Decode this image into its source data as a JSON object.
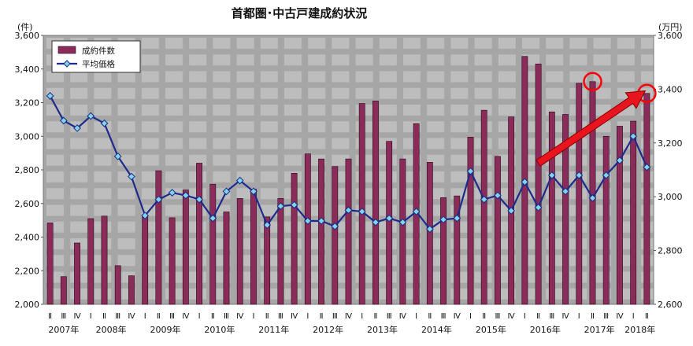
{
  "chart_data": {
    "type": "bar+line",
    "title": "首都圏･中古戸建成約状況",
    "left_axis": {
      "unit": "(件)",
      "range": [
        2000,
        3600
      ],
      "ticks": [
        "2,000",
        "2,200",
        "2,400",
        "2,600",
        "2,800",
        "3,000",
        "3,200",
        "3,400",
        "3,600"
      ]
    },
    "right_axis": {
      "unit": "(万円)",
      "range": [
        2600,
        3600
      ],
      "ticks": [
        "2,600",
        "2,800",
        "3,000",
        "3,200",
        "3,400",
        "3,600"
      ]
    },
    "grid": true,
    "legend": {
      "placement": "top-left",
      "entries": [
        {
          "name": "成約件数",
          "marker": "bar"
        },
        {
          "name": "平均価格",
          "marker": "line-diamond"
        }
      ]
    },
    "quarters": [
      "Ⅱ",
      "Ⅲ",
      "Ⅳ",
      "Ⅰ",
      "Ⅱ",
      "Ⅲ",
      "Ⅳ",
      "Ⅰ",
      "Ⅱ",
      "Ⅲ",
      "Ⅳ",
      "Ⅰ",
      "Ⅱ",
      "Ⅲ",
      "Ⅳ",
      "Ⅰ",
      "Ⅱ",
      "Ⅲ",
      "Ⅳ",
      "Ⅰ",
      "Ⅱ",
      "Ⅲ",
      "Ⅳ",
      "Ⅰ",
      "Ⅱ",
      "Ⅲ",
      "Ⅳ",
      "Ⅰ",
      "Ⅱ",
      "Ⅲ",
      "Ⅳ",
      "Ⅰ",
      "Ⅱ",
      "Ⅲ",
      "Ⅳ",
      "Ⅰ",
      "Ⅱ",
      "Ⅲ",
      "Ⅳ",
      "Ⅰ",
      "Ⅱ",
      "Ⅲ",
      "Ⅳ",
      "Ⅰ",
      "Ⅱ"
    ],
    "year_labels": [
      {
        "label": "2007年",
        "index": 1
      },
      {
        "label": "2008年",
        "index": 4.5
      },
      {
        "label": "2009年",
        "index": 8.5
      },
      {
        "label": "2010年",
        "index": 12.5
      },
      {
        "label": "2011年",
        "index": 16.5
      },
      {
        "label": "2012年",
        "index": 20.5
      },
      {
        "label": "2013年",
        "index": 24.5
      },
      {
        "label": "2014年",
        "index": 28.5
      },
      {
        "label": "2015年",
        "index": 32.5
      },
      {
        "label": "2016年",
        "index": 36.5
      },
      {
        "label": "2017年",
        "index": 40.5
      },
      {
        "label": "2018年",
        "index": 43.5
      }
    ],
    "series": [
      {
        "name": "成約件数",
        "kind": "bar",
        "axis": "left",
        "color": "#8b2b5a",
        "values": [
          2485,
          2165,
          2365,
          2510,
          2525,
          2230,
          2170,
          2520,
          2795,
          2515,
          2680,
          2840,
          2715,
          2550,
          2630,
          2685,
          2520,
          2630,
          2780,
          2895,
          2865,
          2820,
          2865,
          3195,
          3210,
          2970,
          2865,
          3075,
          2845,
          2635,
          2645,
          2995,
          3155,
          2880,
          3115,
          3475,
          3430,
          3145,
          3130,
          3315,
          3325,
          3000,
          3060,
          3090,
          3255
        ]
      },
      {
        "name": "平均価格",
        "kind": "line",
        "axis": "right",
        "color": "#1e2a8c",
        "marker_color": "#7fd4e6",
        "values": [
          3375,
          3283,
          3255,
          3300,
          3273,
          3150,
          3075,
          2930,
          2990,
          3015,
          3005,
          2990,
          2920,
          3020,
          3060,
          3020,
          2895,
          2965,
          2970,
          2910,
          2910,
          2890,
          2950,
          2945,
          2905,
          2920,
          2905,
          2945,
          2880,
          2915,
          2920,
          3095,
          2990,
          3005,
          2948,
          3055,
          2960,
          3080,
          3020,
          3080,
          2995,
          3080,
          3135,
          3225,
          3110
        ]
      }
    ],
    "annotations": [
      {
        "type": "circle",
        "color": "#ff0000",
        "series": "成約件数",
        "index": 40
      },
      {
        "type": "circle",
        "color": "#ff0000",
        "series": "成約件数",
        "index": 44
      },
      {
        "type": "arrow",
        "color": "#e8141e",
        "from_index": 36.5,
        "from_value": 2840,
        "to_index": 44,
        "to_value": 3270
      }
    ]
  }
}
